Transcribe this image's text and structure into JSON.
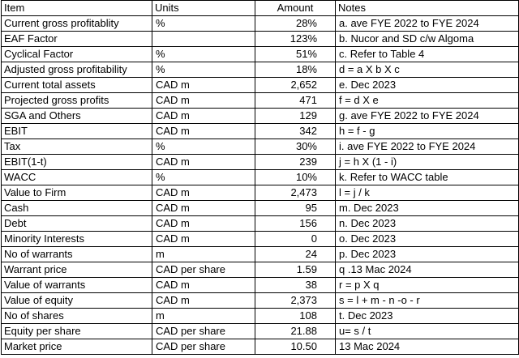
{
  "table": {
    "headers": {
      "item": "Item",
      "units": "Units",
      "amount": "Amount",
      "notes": "Notes"
    },
    "rows": [
      {
        "item": "Current gross profitablity",
        "units": "%",
        "amount": "28%",
        "notes": "a. ave FYE 2022 to FYE 2024"
      },
      {
        "item": "EAF Factor",
        "units": "",
        "amount": "123%",
        "notes": "b. Nucor and SD c/w Algoma"
      },
      {
        "item": "Cyclical Factor",
        "units": "%",
        "amount": "51%",
        "notes": "c. Refer to Table 4"
      },
      {
        "item": "Adjusted gross profitability",
        "units": "%",
        "amount": "18%",
        "notes": "d = a X b X c"
      },
      {
        "item": "Current total assets",
        "units": "CAD m",
        "amount": "2,652",
        "notes": "e. Dec 2023"
      },
      {
        "item": "Projected gross profits",
        "units": "CAD m",
        "amount": "471",
        "notes": "f = d X e"
      },
      {
        "item": "SGA and Others",
        "units": "CAD m",
        "amount": "129",
        "notes": "g. ave FYE 2022 to FYE 2024"
      },
      {
        "item": "EBIT",
        "units": "CAD m",
        "amount": "342",
        "notes": "h = f - g"
      },
      {
        "item": "Tax",
        "units": "%",
        "amount": "30%",
        "notes": "i. ave FYE 2022 to FYE 2024"
      },
      {
        "item": "EBIT(1-t)",
        "units": "CAD m",
        "amount": "239",
        "notes": "j = h X (1 - i)"
      },
      {
        "item": "WACC",
        "units": "%",
        "amount": "10%",
        "notes": "k. Refer to WACC table"
      },
      {
        "item": "Value to Firm",
        "units": "CAD m",
        "amount": "2,473",
        "notes": "l = j / k"
      },
      {
        "item": "Cash",
        "units": "CAD m",
        "amount": "95",
        "notes": "m. Dec 2023"
      },
      {
        "item": "Debt",
        "units": "CAD m",
        "amount": "156",
        "notes": "n. Dec 2023"
      },
      {
        "item": "Minority Interests",
        "units": "CAD m",
        "amount": "0",
        "notes": "o. Dec 2023"
      },
      {
        "item": "No of warrants",
        "units": "m",
        "amount": "24",
        "notes": "p. Dec 2023"
      },
      {
        "item": "Warrant price",
        "units": "CAD per share",
        "amount": "1.59",
        "notes": "q .13 Mac 2024"
      },
      {
        "item": "Value of warrants",
        "units": "CAD m",
        "amount": "38",
        "notes": "r = p X q"
      },
      {
        "item": "Value of equity",
        "units": "CAD m",
        "amount": "2,373",
        "notes": "s = l + m - n -o - r"
      },
      {
        "item": "No of shares",
        "units": "m",
        "amount": "108",
        "notes": "t. Dec 2023"
      },
      {
        "item": "Equity per share",
        "units": "CAD per share",
        "amount": "21.88",
        "notes": "u= s / t"
      },
      {
        "item": "Market price",
        "units": "CAD per share",
        "amount": "10.50",
        "notes": "13 Mac 2024"
      }
    ]
  }
}
